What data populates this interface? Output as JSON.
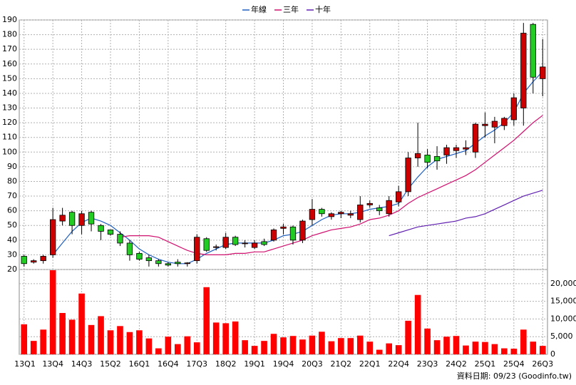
{
  "chart_data": {
    "type": "candlestick",
    "legend": [
      "年線",
      "三年",
      "十年"
    ],
    "footer": "資料日期: 09/23 (Goodinfo.tw)",
    "categories": [
      "13Q1",
      null,
      null,
      "13Q4",
      null,
      null,
      "14Q3",
      null,
      null,
      "15Q2",
      null,
      null,
      "16Q1",
      null,
      null,
      "16Q4",
      null,
      null,
      "17Q3",
      null,
      null,
      "18Q2",
      null,
      null,
      "19Q1",
      null,
      null,
      "19Q4",
      null,
      null,
      "20Q3",
      null,
      null,
      "21Q2",
      null,
      null,
      "22Q1",
      null,
      null,
      "22Q4",
      null,
      null,
      "23Q3",
      null,
      null,
      "24Q2",
      null,
      null,
      "25Q1",
      null,
      null,
      "25Q4",
      null,
      null,
      "26Q3"
    ],
    "open": [
      29,
      25,
      26,
      30,
      53,
      59,
      50,
      59,
      50,
      47,
      44,
      38,
      31,
      28,
      26,
      24,
      25,
      24,
      26,
      41,
      35,
      35,
      42,
      38,
      35,
      39,
      40,
      48,
      49,
      40,
      54,
      61,
      56,
      58,
      57,
      54,
      64,
      62,
      58,
      66,
      73,
      96,
      98,
      97,
      98,
      101,
      102,
      100,
      118,
      117,
      118,
      122,
      130,
      187,
      150
    ],
    "high": [
      30,
      27,
      30,
      62,
      62,
      60,
      60,
      60,
      51,
      47,
      46,
      40,
      32,
      30,
      27,
      25,
      27,
      25,
      44,
      42,
      37,
      45,
      43,
      40,
      40,
      41,
      48,
      51,
      50,
      54,
      68,
      62,
      59,
      60,
      60,
      70,
      67,
      64,
      70,
      77,
      100,
      120,
      102,
      104,
      105,
      105,
      108,
      120,
      127,
      124,
      124,
      140,
      188,
      188,
      177
    ],
    "low": [
      22,
      24,
      24,
      28,
      50,
      44,
      44,
      46,
      40,
      43,
      36,
      26,
      26,
      22,
      22,
      22,
      22,
      22,
      24,
      32,
      33,
      34,
      36,
      35,
      34,
      36,
      39,
      44,
      37,
      38,
      50,
      56,
      54,
      55,
      55,
      52,
      62,
      57,
      56,
      63,
      70,
      90,
      89,
      88,
      92,
      96,
      98,
      96,
      110,
      106,
      115,
      118,
      118,
      140,
      138
    ],
    "close": [
      24,
      26,
      29,
      54,
      57,
      50,
      58,
      51,
      46,
      44,
      38,
      30,
      27,
      26,
      24,
      23,
      24,
      24.5,
      42,
      33,
      35.5,
      42,
      37,
      38,
      38,
      37,
      47,
      49,
      40,
      53,
      61,
      58,
      58,
      59,
      58,
      64,
      65,
      60,
      67,
      73,
      96,
      99,
      93,
      94,
      103,
      103,
      103,
      119,
      119,
      121,
      123,
      137,
      181,
      151,
      158
    ],
    "up_color": "#cc0000",
    "down_color": "#22cc22",
    "series": [
      {
        "name": "年線",
        "color": "#1f5fbf",
        "values": [
          null,
          null,
          null,
          30,
          38,
          46,
          52,
          55,
          53,
          50,
          45,
          40,
          34,
          30,
          27,
          25,
          24,
          24,
          27,
          31,
          34,
          37,
          38,
          38,
          38,
          38,
          40,
          43,
          44,
          46,
          50,
          54,
          57,
          58,
          58,
          59,
          61,
          62,
          63,
          65,
          75,
          83,
          90,
          95,
          97,
          99,
          101,
          106,
          111,
          115,
          120,
          127,
          140,
          148,
          155
        ]
      },
      {
        "name": "三年",
        "color": "#d0106f",
        "values": [
          null,
          null,
          null,
          null,
          null,
          null,
          null,
          null,
          null,
          null,
          42,
          43,
          43,
          43,
          42,
          39,
          36,
          33,
          31,
          30,
          30,
          30,
          31,
          31,
          32,
          32,
          34,
          36,
          38,
          40,
          43,
          45,
          47,
          48,
          49,
          51,
          54,
          55,
          57,
          60,
          65,
          69,
          72,
          75,
          78,
          81,
          84,
          88,
          93,
          98,
          103,
          108,
          114,
          120,
          125
        ]
      },
      {
        "name": "十年",
        "color": "#6020b0",
        "values": [
          null,
          null,
          null,
          null,
          null,
          null,
          null,
          null,
          null,
          null,
          null,
          null,
          null,
          null,
          null,
          null,
          null,
          null,
          null,
          null,
          null,
          null,
          null,
          null,
          null,
          null,
          null,
          null,
          null,
          null,
          null,
          null,
          null,
          null,
          null,
          null,
          null,
          null,
          43,
          45,
          47,
          49,
          50,
          51,
          52,
          53,
          55,
          56,
          58,
          61,
          64,
          67,
          70,
          72,
          74
        ]
      }
    ],
    "ylim": [
      20,
      190
    ],
    "yticks": [
      20,
      30,
      40,
      50,
      60,
      70,
      80,
      90,
      100,
      110,
      120,
      130,
      140,
      150,
      160,
      170,
      180,
      190
    ],
    "volume": {
      "color": "#ff0000",
      "values": [
        8500,
        3800,
        7000,
        23800,
        11700,
        9800,
        17200,
        8300,
        10800,
        6800,
        8000,
        6300,
        6800,
        4500,
        1700,
        5000,
        2900,
        5100,
        3400,
        19000,
        9000,
        8800,
        9300,
        4000,
        2400,
        3800,
        5800,
        4800,
        5200,
        4200,
        5300,
        6400,
        3700,
        4600,
        4600,
        5300,
        3600,
        1300,
        3100,
        2600,
        9500,
        16800,
        7300,
        4000,
        5000,
        5200,
        2500,
        3600,
        3500,
        2900,
        1700,
        1600,
        7000,
        3600,
        2400
      ]
    },
    "y2lim": [
      0,
      24000
    ],
    "y2ticks": [
      0,
      {
        "value": 5000,
        "label": "5,000"
      },
      {
        "value": 10000,
        "label": "10,000"
      },
      {
        "value": 15000,
        "label": "15,000"
      },
      {
        "value": 20000,
        "label": "20,000"
      }
    ],
    "grid": true
  }
}
